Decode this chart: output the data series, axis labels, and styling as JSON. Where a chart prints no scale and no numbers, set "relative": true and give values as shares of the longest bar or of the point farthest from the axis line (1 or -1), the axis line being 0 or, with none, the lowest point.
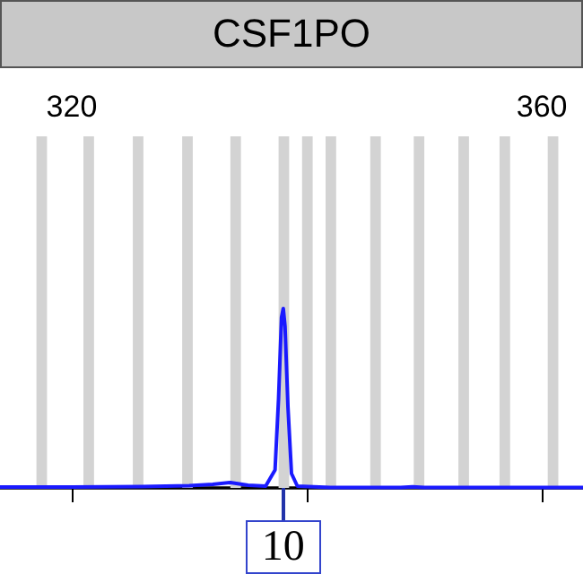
{
  "chart_data": {
    "type": "line",
    "title": "CSF1PO",
    "relative": true,
    "marker": "none",
    "xlim": [
      313.9,
      363.5
    ],
    "xticks": [
      320,
      {
        "value": 340,
        "label": null
      },
      360
    ],
    "x": [
      313.9,
      320,
      326,
      330,
      332,
      333.5,
      335,
      336.5,
      337.3,
      337.6,
      337.85,
      338.0,
      338.15,
      338.4,
      338.7,
      339.2,
      342,
      348,
      349,
      350,
      363.5
    ],
    "series": [
      {
        "color": "#1a1aff",
        "values": [
          0.005,
          0.005,
          0.008,
          0.012,
          0.02,
          0.03,
          0.015,
          0.01,
          0.1,
          0.5,
          0.95,
          1,
          0.9,
          0.45,
          0.08,
          0.01,
          0.003,
          0.003,
          0.006,
          0.003,
          0.002
        ]
      }
    ],
    "bands": [
      {
        "axis": "x",
        "from": 317.0,
        "to": 317.9,
        "color": "#d3d3d3"
      },
      {
        "axis": "x",
        "from": 321.0,
        "to": 321.9,
        "color": "#d3d3d3"
      },
      {
        "axis": "x",
        "from": 325.2,
        "to": 326.1,
        "color": "#d3d3d3"
      },
      {
        "axis": "x",
        "from": 329.4,
        "to": 330.3,
        "color": "#d3d3d3"
      },
      {
        "axis": "x",
        "from": 333.5,
        "to": 334.4,
        "color": "#d3d3d3"
      },
      {
        "axis": "x",
        "from": 337.6,
        "to": 338.5,
        "color": "#d3d3d3"
      },
      {
        "axis": "x",
        "from": 339.6,
        "to": 340.5,
        "color": "#d3d3d3"
      },
      {
        "axis": "x",
        "from": 341.6,
        "to": 342.5,
        "color": "#d3d3d3"
      },
      {
        "axis": "x",
        "from": 345.4,
        "to": 346.3,
        "color": "#d3d3d3"
      },
      {
        "axis": "x",
        "from": 349.1,
        "to": 350.0,
        "color": "#d3d3d3"
      },
      {
        "axis": "x",
        "from": 352.9,
        "to": 353.8,
        "color": "#d3d3d3"
      },
      {
        "axis": "x",
        "from": 356.4,
        "to": 357.3,
        "color": "#d3d3d3"
      },
      {
        "axis": "x",
        "from": 360.5,
        "to": 361.4,
        "color": "#d3d3d3"
      }
    ],
    "annotations": [
      {
        "text": "10",
        "x": 338.0,
        "y": 0
      }
    ]
  }
}
